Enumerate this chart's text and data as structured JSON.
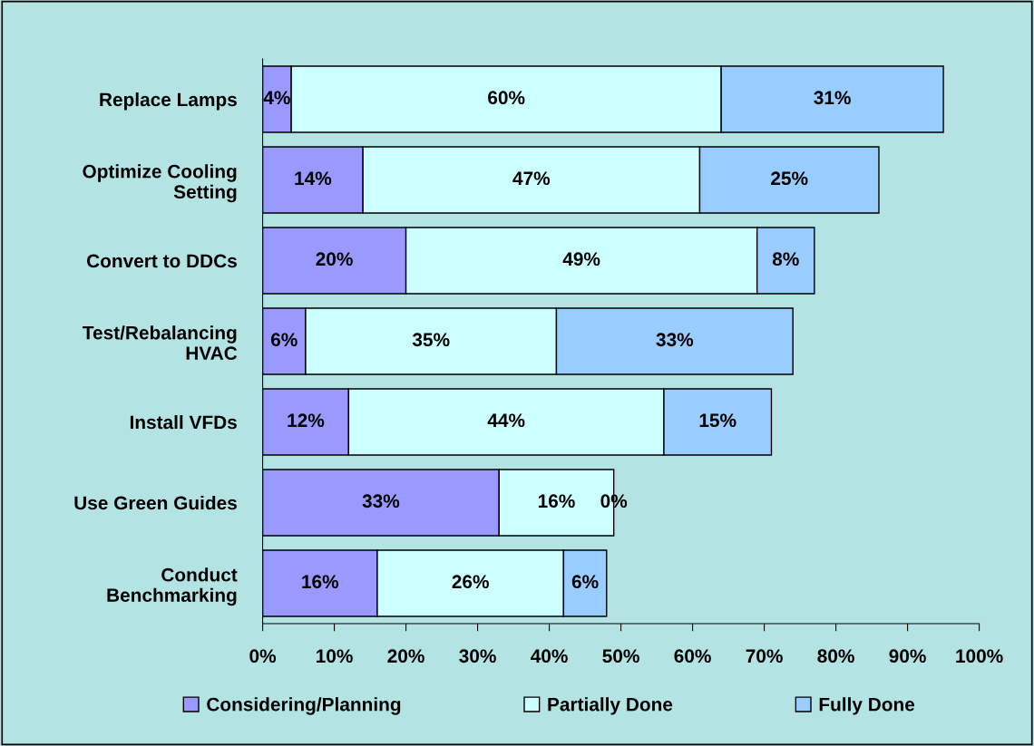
{
  "chart_data": {
    "type": "bar",
    "orientation": "horizontal",
    "stacked": true,
    "legend": "bottom",
    "grid": false,
    "categories": [
      "Replace Lamps",
      "Optimize Cooling\nSetting",
      "Convert to DDCs",
      "Test/Rebalancing\nHVAC",
      "Install VFDs",
      "Use Green Guides",
      "Conduct\nBenchmarking"
    ],
    "series": [
      {
        "name": "Considering/Planning",
        "color": "#9999ff",
        "values": [
          4,
          14,
          20,
          6,
          12,
          33,
          16
        ],
        "value_labels": [
          "4%",
          "14%",
          "20%",
          "6%",
          "12%",
          "33%",
          "16%"
        ]
      },
      {
        "name": "Partially Done",
        "color": "#ccffff",
        "values": [
          60,
          47,
          49,
          35,
          44,
          16,
          26
        ],
        "value_labels": [
          "60%",
          "47%",
          "49%",
          "35%",
          "44%",
          "16%",
          "26%"
        ]
      },
      {
        "name": "Fully Done",
        "color": "#99ccff",
        "values": [
          31,
          25,
          8,
          33,
          15,
          0,
          6
        ],
        "value_labels": [
          "31%",
          "25%",
          "8%",
          "33%",
          "15%",
          "0%",
          "6%"
        ]
      }
    ],
    "xlim": [
      0,
      100
    ],
    "xticks": [
      {
        "value": 0,
        "label": "0%"
      },
      {
        "value": 10,
        "label": "10%"
      },
      {
        "value": 20,
        "label": "20%"
      },
      {
        "value": 30,
        "label": "30%"
      },
      {
        "value": 40,
        "label": "40%"
      },
      {
        "value": 50,
        "label": "50%"
      },
      {
        "value": 60,
        "label": "60%"
      },
      {
        "value": 70,
        "label": "70%"
      },
      {
        "value": 80,
        "label": "80%"
      },
      {
        "value": 90,
        "label": "90%"
      },
      {
        "value": 100,
        "label": "100%"
      }
    ]
  }
}
